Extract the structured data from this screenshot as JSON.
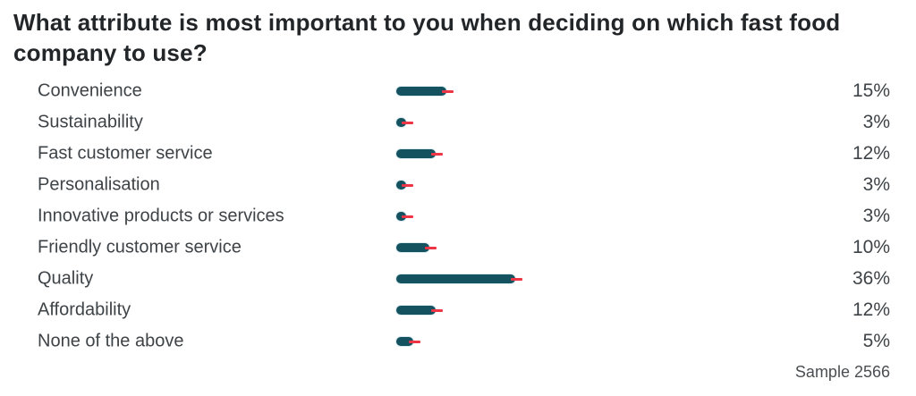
{
  "title": "What attribute is most important to you when deciding on which fast food company to use?",
  "footer": {
    "sample_label": "Sample 2566"
  },
  "colors": {
    "bar": "#14525f",
    "marker": "#ee3545",
    "title_text": "#222629",
    "label_text": "#3e4347"
  },
  "chart_data": {
    "type": "bar",
    "orientation": "horizontal",
    "title": "What attribute is most important to you when deciding on which fast food company to use?",
    "categories": [
      "Convenience",
      "Sustainability",
      "Fast customer service",
      "Personalisation",
      "Innovative products or services",
      "Friendly customer service",
      "Quality",
      "Affordability",
      "None of the above"
    ],
    "values": [
      15,
      3,
      12,
      3,
      3,
      10,
      36,
      12,
      5
    ],
    "value_labels": [
      "15%",
      "3%",
      "12%",
      "3%",
      "3%",
      "10%",
      "36%",
      "12%",
      "5%"
    ],
    "unit": "percent",
    "xlim": [
      0,
      100
    ],
    "grid": false,
    "legend": false,
    "annotations": [
      "Sample 2566"
    ],
    "marker_style": "red tick at bar end"
  }
}
